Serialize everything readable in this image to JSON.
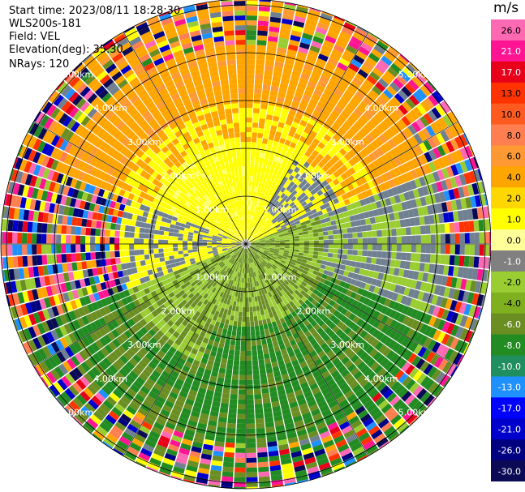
{
  "header": {
    "start_time": "Start time: 2023/08/11 18:28:30",
    "instrument": "WLS200s-181",
    "field": "Field: VEL",
    "elevation": "Elevation(deg): 35.30",
    "nrays": "NRays: 120"
  },
  "rings": {
    "labels": [
      "1.00km",
      "2.00km",
      "3.00km",
      "4.00km",
      "5.00km"
    ],
    "values_km": [
      1,
      2,
      3,
      4,
      5
    ]
  },
  "colorbar": {
    "unit": "m/s",
    "ticks": [
      "26.0",
      "21.0",
      "17.0",
      "13.0",
      "10.0",
      "8.0",
      "6.0",
      "4.0",
      "2.0",
      "1.0",
      "0.0",
      "-1.0",
      "-2.0",
      "-4.0",
      "-6.0",
      "-8.0",
      "-10.0",
      "-13.0",
      "-17.0",
      "-21.0",
      "-26.0",
      "-30.0"
    ],
    "colors": [
      "#ff69b4",
      "#ff1493",
      "#e8001a",
      "#ff3300",
      "#ff5a1f",
      "#ff7f50",
      "#ff9933",
      "#ffa500",
      "#ffd700",
      "#ffff00",
      "#ffff99",
      "#808080",
      "#9acd32",
      "#7fb020",
      "#6b8e23",
      "#228b22",
      "#1f8f5f",
      "#1e90ff",
      "#0000ff",
      "#0000cd",
      "#000080",
      "#0b0b55"
    ]
  }
}
